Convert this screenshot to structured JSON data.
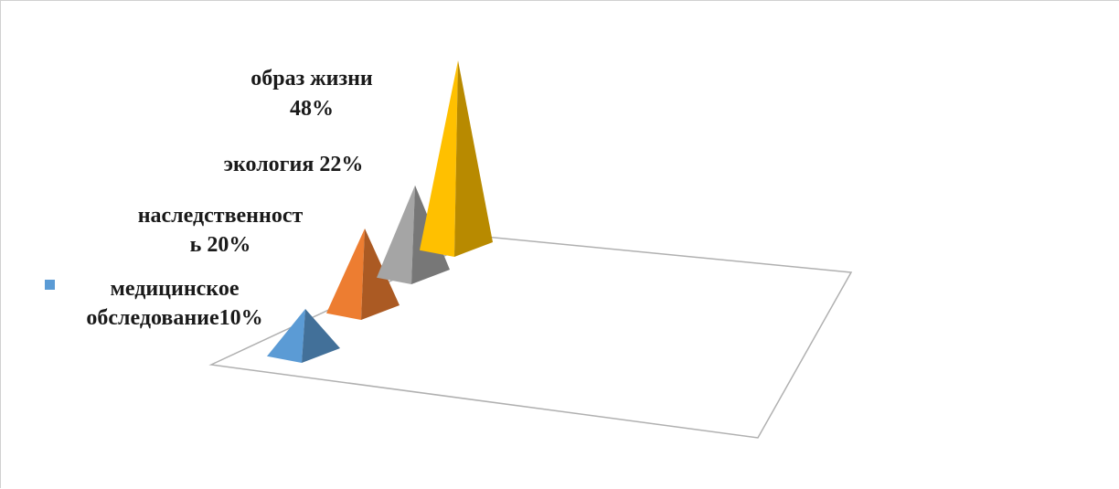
{
  "chart_data": {
    "type": "pyramid-3d",
    "categories": [
      "медицинское обследование",
      "наследственность",
      "экология",
      "образ жизни"
    ],
    "values": [
      10,
      20,
      22,
      48
    ],
    "unit": "%",
    "data_labels": [
      [
        "медицинское",
        "обследование10%"
      ],
      [
        "наследственност",
        "ь 20%"
      ],
      [
        "экология 22%"
      ],
      [
        "образ жизни",
        "48%"
      ]
    ],
    "colors": [
      "#5b9bd5",
      "#ed7d31",
      "#a5a5a5",
      "#ffc000"
    ],
    "legend": {
      "position": "left",
      "marker_color": "#5b9bd5"
    },
    "grid": false
  }
}
